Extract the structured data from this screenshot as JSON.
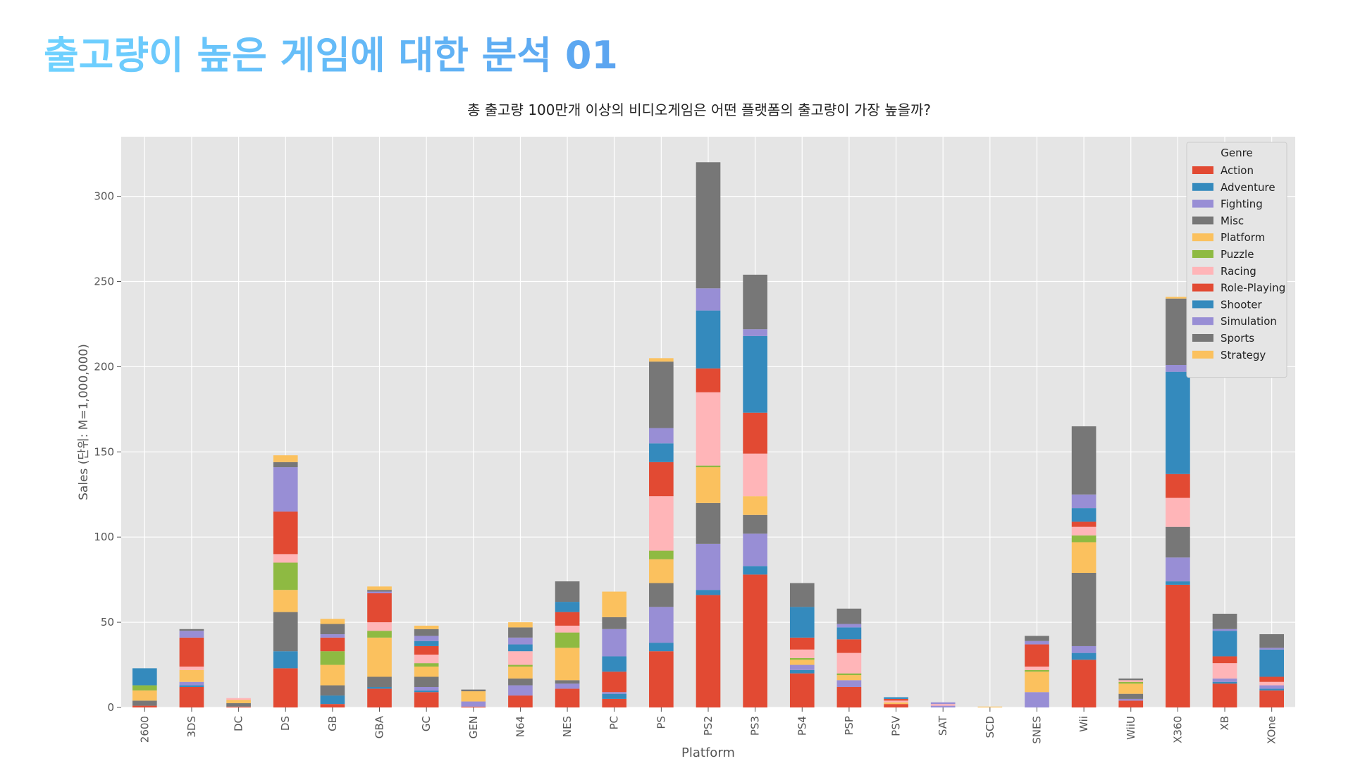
{
  "header": {
    "title": "출고량이 높은 게임에 대한 분석 01"
  },
  "colors": {
    "title_gradient_start": "#6fd2ff",
    "title_gradient_end": "#5ba4f0",
    "plot_background": "#e5e5e5",
    "grid": "#ffffff"
  },
  "chart_data": {
    "type": "bar",
    "stacked": true,
    "title": "총 출고량 100만개 이상의 비디오게임은 어떤 플랫폼의 출고량이 가장 높을까?",
    "xlabel": "Platform",
    "ylabel": "Sales (단위: M=1,000,000)",
    "ylim": [
      0,
      335
    ],
    "yticks": [
      0,
      50,
      100,
      150,
      200,
      250,
      300
    ],
    "grid": true,
    "legend": {
      "title": "Genre",
      "position": "top-right"
    },
    "categories": [
      "2600",
      "3DS",
      "DC",
      "DS",
      "GB",
      "GBA",
      "GC",
      "GEN",
      "N64",
      "NES",
      "PC",
      "PS",
      "PS2",
      "PS3",
      "PS4",
      "PSP",
      "PSV",
      "SAT",
      "SCD",
      "SNES",
      "Wii",
      "WiiU",
      "X360",
      "XB",
      "XOne"
    ],
    "series": [
      {
        "name": "Action",
        "color": "#E24A33",
        "values": [
          1,
          12,
          0.5,
          23,
          2,
          11,
          9,
          0.5,
          7,
          11,
          5,
          33,
          66,
          78,
          20,
          12,
          2,
          0,
          0,
          0,
          28,
          4,
          72,
          14,
          10
        ]
      },
      {
        "name": "Adventure",
        "color": "#348ABD",
        "values": [
          0,
          1,
          0,
          10,
          5,
          1,
          1,
          0,
          0,
          0,
          3,
          5,
          3,
          5,
          2,
          0,
          0,
          0,
          0,
          0,
          4,
          0,
          2,
          1,
          1
        ]
      },
      {
        "name": "Fighting",
        "color": "#988ED5",
        "values": [
          0,
          2,
          0,
          0,
          0,
          0,
          2,
          3,
          6,
          3,
          1,
          21,
          27,
          19,
          3,
          4,
          0,
          1,
          0,
          9,
          4,
          1,
          14,
          2,
          2
        ]
      },
      {
        "name": "Misc",
        "color": "#777777",
        "values": [
          3,
          0,
          2,
          23,
          6,
          6,
          6,
          0,
          4,
          2,
          0,
          14,
          24,
          11,
          0,
          0,
          0,
          0,
          0,
          0,
          43,
          3,
          18,
          0,
          0
        ]
      },
      {
        "name": "Platform",
        "color": "#FBC15E",
        "values": [
          6,
          7,
          2,
          13,
          12,
          23,
          6,
          6,
          7,
          19,
          0,
          14,
          21,
          11,
          3,
          3,
          1,
          0,
          0.5,
          12,
          18,
          6,
          0,
          0,
          0
        ]
      },
      {
        "name": "Puzzle",
        "color": "#8EBA42",
        "values": [
          3,
          0,
          0,
          16,
          8,
          4,
          2,
          0,
          1,
          9,
          0,
          5,
          1,
          0,
          1,
          1,
          0,
          0,
          0,
          1,
          4,
          1,
          0,
          0,
          0
        ]
      },
      {
        "name": "Racing",
        "color": "#FFB5B8",
        "values": [
          0,
          2,
          1,
          5,
          0,
          5,
          5,
          0,
          8,
          4,
          0,
          32,
          43,
          25,
          5,
          12,
          1,
          1,
          0,
          2,
          5,
          1,
          17,
          9,
          2
        ]
      },
      {
        "name": "Role-Playing",
        "color": "#E24A33",
        "values": [
          0,
          17,
          0,
          25,
          8,
          17,
          5,
          0,
          0,
          8,
          12,
          20,
          14,
          24,
          7,
          8,
          1,
          0,
          0,
          13,
          3,
          0,
          14,
          4,
          3
        ]
      },
      {
        "name": "Shooter",
        "color": "#348ABD",
        "values": [
          10,
          0,
          0,
          0,
          0,
          0,
          3,
          0,
          4,
          6,
          9,
          11,
          34,
          45,
          18,
          7,
          1,
          0,
          0,
          0,
          8,
          0,
          60,
          15,
          16
        ]
      },
      {
        "name": "Simulation",
        "color": "#988ED5",
        "values": [
          0,
          4,
          0,
          26,
          2,
          1,
          3,
          0,
          4,
          0,
          16,
          9,
          13,
          4,
          0,
          2,
          0,
          1,
          0,
          2,
          8,
          0,
          4,
          1,
          1
        ]
      },
      {
        "name": "Sports",
        "color": "#777777",
        "values": [
          0,
          1,
          0,
          3,
          6,
          1,
          4,
          1,
          6,
          12,
          7,
          39,
          74,
          32,
          14,
          9,
          0,
          0,
          0,
          3,
          40,
          1,
          39,
          9,
          8
        ]
      },
      {
        "name": "Strategy",
        "color": "#FBC15E",
        "values": [
          0,
          0,
          0,
          4,
          3,
          2,
          2,
          0,
          3,
          0,
          15,
          2,
          0,
          0,
          0,
          0,
          0,
          0,
          0,
          0,
          0,
          0,
          1,
          0,
          0
        ]
      }
    ]
  }
}
